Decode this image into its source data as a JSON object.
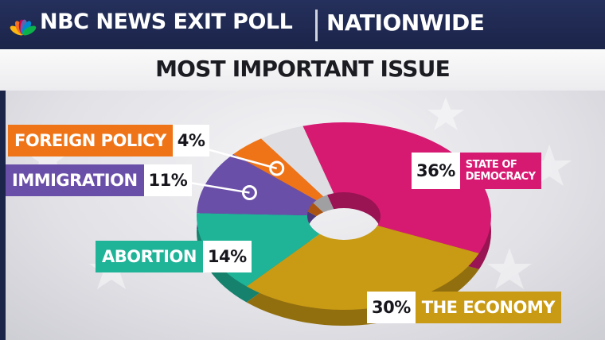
{
  "header": {
    "brand": "NBC NEWS EXIT POLL",
    "region": "NATIONWIDE",
    "peacock_colors": [
      "#fcb711",
      "#f37021",
      "#cc004c",
      "#6460aa",
      "#0089d0",
      "#0db14b"
    ]
  },
  "chart_data": {
    "type": "pie",
    "donut": true,
    "title": "MOST IMPORTANT ISSUE",
    "slices": [
      {
        "label": "STATE OF DEMOCRACY",
        "value": 36,
        "display": "36%",
        "color": "#d61a72"
      },
      {
        "label": "THE ECONOMY",
        "value": 30,
        "display": "30%",
        "color": "#c99a14"
      },
      {
        "label": "ABORTION",
        "value": 14,
        "display": "14%",
        "color": "#1fb398"
      },
      {
        "label": "IMMIGRATION",
        "value": 11,
        "display": "11%",
        "color": "#6a4fa8"
      },
      {
        "label": "FOREIGN POLICY",
        "value": 4,
        "display": "4%",
        "color": "#ef7418"
      }
    ],
    "unlabeled_remainder": {
      "value": 5,
      "color": "#dedee2"
    }
  },
  "labels": {
    "democracy": {
      "line1": "STATE OF",
      "line2": "DEMOCRACY"
    }
  }
}
